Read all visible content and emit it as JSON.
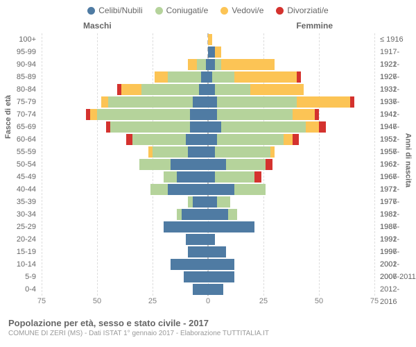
{
  "legend": {
    "items": [
      {
        "name": "celibi",
        "label": "Celibi/Nubili",
        "color": "#4f7ba3"
      },
      {
        "name": "coniugati",
        "label": "Coniugati/e",
        "color": "#b5d39b"
      },
      {
        "name": "vedovi",
        "label": "Vedovi/e",
        "color": "#fcc455"
      },
      {
        "name": "divorziati",
        "label": "Divorziati/e",
        "color": "#d4322e"
      }
    ]
  },
  "side_headers": {
    "male": "Maschi",
    "female": "Femmine"
  },
  "axis_titles": {
    "left": "Fasce di età",
    "right": "Anni di nascita"
  },
  "x_axis": {
    "max": 75,
    "ticks": [
      75,
      50,
      25,
      0,
      25,
      50,
      75
    ]
  },
  "colors": {
    "celibi": "#4f7ba3",
    "coniugati": "#b5d39b",
    "vedovi": "#fcc455",
    "divorziati": "#d4322e",
    "grid": "#dddddd",
    "center": "#bbbbbb"
  },
  "footer": {
    "title": "Popolazione per età, sesso e stato civile - 2017",
    "subtitle": "COMUNE DI ZERI (MS) - Dati ISTAT 1° gennaio 2017 - Elaborazione TUTTITALIA.IT"
  },
  "rows": [
    {
      "age": "100+",
      "birth": "≤ 1916",
      "m": {
        "cel": 0,
        "con": 0,
        "ved": 0,
        "div": 0
      },
      "f": {
        "cel": 0,
        "con": 0,
        "ved": 2,
        "div": 0
      }
    },
    {
      "age": "95-99",
      "birth": "1917-1921",
      "m": {
        "cel": 0,
        "con": 0,
        "ved": 0,
        "div": 0
      },
      "f": {
        "cel": 3,
        "con": 0,
        "ved": 3,
        "div": 0
      }
    },
    {
      "age": "90-94",
      "birth": "1922-1926",
      "m": {
        "cel": 1,
        "con": 4,
        "ved": 4,
        "div": 0
      },
      "f": {
        "cel": 3,
        "con": 3,
        "ved": 24,
        "div": 0
      }
    },
    {
      "age": "85-89",
      "birth": "1927-1931",
      "m": {
        "cel": 3,
        "con": 15,
        "ved": 6,
        "div": 0
      },
      "f": {
        "cel": 2,
        "con": 10,
        "ved": 28,
        "div": 2
      }
    },
    {
      "age": "80-84",
      "birth": "1932-1936",
      "m": {
        "cel": 4,
        "con": 26,
        "ved": 9,
        "div": 2
      },
      "f": {
        "cel": 3,
        "con": 16,
        "ved": 24,
        "div": 0
      }
    },
    {
      "age": "75-79",
      "birth": "1937-1941",
      "m": {
        "cel": 7,
        "con": 38,
        "ved": 3,
        "div": 0
      },
      "f": {
        "cel": 4,
        "con": 36,
        "ved": 24,
        "div": 2
      }
    },
    {
      "age": "70-74",
      "birth": "1942-1946",
      "m": {
        "cel": 8,
        "con": 42,
        "ved": 3,
        "div": 2
      },
      "f": {
        "cel": 4,
        "con": 34,
        "ved": 10,
        "div": 2
      }
    },
    {
      "age": "65-69",
      "birth": "1947-1951",
      "m": {
        "cel": 8,
        "con": 36,
        "ved": 0,
        "div": 2
      },
      "f": {
        "cel": 6,
        "con": 38,
        "ved": 6,
        "div": 3
      }
    },
    {
      "age": "60-64",
      "birth": "1952-1956",
      "m": {
        "cel": 10,
        "con": 24,
        "ved": 0,
        "div": 3
      },
      "f": {
        "cel": 4,
        "con": 30,
        "ved": 4,
        "div": 3
      }
    },
    {
      "age": "55-59",
      "birth": "1957-1961",
      "m": {
        "cel": 9,
        "con": 16,
        "ved": 2,
        "div": 0
      },
      "f": {
        "cel": 3,
        "con": 25,
        "ved": 2,
        "div": 0
      }
    },
    {
      "age": "50-54",
      "birth": "1962-1966",
      "m": {
        "cel": 17,
        "con": 14,
        "ved": 0,
        "div": 0
      },
      "f": {
        "cel": 8,
        "con": 18,
        "ved": 0,
        "div": 3
      }
    },
    {
      "age": "45-49",
      "birth": "1967-1971",
      "m": {
        "cel": 14,
        "con": 6,
        "ved": 0,
        "div": 0
      },
      "f": {
        "cel": 3,
        "con": 18,
        "ved": 0,
        "div": 3
      }
    },
    {
      "age": "40-44",
      "birth": "1972-1976",
      "m": {
        "cel": 18,
        "con": 8,
        "ved": 0,
        "div": 0
      },
      "f": {
        "cel": 12,
        "con": 14,
        "ved": 0,
        "div": 0
      }
    },
    {
      "age": "35-39",
      "birth": "1977-1981",
      "m": {
        "cel": 7,
        "con": 2,
        "ved": 0,
        "div": 0
      },
      "f": {
        "cel": 4,
        "con": 6,
        "ved": 0,
        "div": 0
      }
    },
    {
      "age": "30-34",
      "birth": "1982-1986",
      "m": {
        "cel": 12,
        "con": 2,
        "ved": 0,
        "div": 0
      },
      "f": {
        "cel": 9,
        "con": 4,
        "ved": 0,
        "div": 0
      }
    },
    {
      "age": "25-29",
      "birth": "1987-1991",
      "m": {
        "cel": 20,
        "con": 0,
        "ved": 0,
        "div": 0
      },
      "f": {
        "cel": 21,
        "con": 0,
        "ved": 0,
        "div": 0
      }
    },
    {
      "age": "20-24",
      "birth": "1992-1996",
      "m": {
        "cel": 10,
        "con": 0,
        "ved": 0,
        "div": 0
      },
      "f": {
        "cel": 3,
        "con": 0,
        "ved": 0,
        "div": 0
      }
    },
    {
      "age": "15-19",
      "birth": "1997-2001",
      "m": {
        "cel": 9,
        "con": 0,
        "ved": 0,
        "div": 0
      },
      "f": {
        "cel": 8,
        "con": 0,
        "ved": 0,
        "div": 0
      }
    },
    {
      "age": "10-14",
      "birth": "2002-2006",
      "m": {
        "cel": 17,
        "con": 0,
        "ved": 0,
        "div": 0
      },
      "f": {
        "cel": 12,
        "con": 0,
        "ved": 0,
        "div": 0
      }
    },
    {
      "age": "5-9",
      "birth": "2007-2011",
      "m": {
        "cel": 11,
        "con": 0,
        "ved": 0,
        "div": 0
      },
      "f": {
        "cel": 12,
        "con": 0,
        "ved": 0,
        "div": 0
      }
    },
    {
      "age": "0-4",
      "birth": "2012-2016",
      "m": {
        "cel": 7,
        "con": 0,
        "ved": 0,
        "div": 0
      },
      "f": {
        "cel": 7,
        "con": 0,
        "ved": 0,
        "div": 0
      }
    }
  ]
}
